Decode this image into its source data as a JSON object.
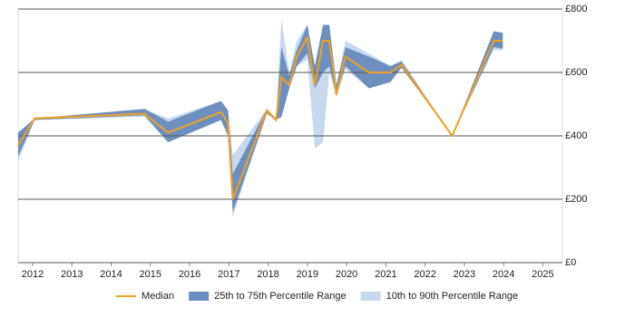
{
  "chart_data": {
    "type": "percentile-band",
    "x": [
      2011.63,
      2012.05,
      2014.85,
      2015.45,
      2016.8,
      2016.98,
      2017.1,
      2017.97,
      2018.2,
      2018.34,
      2018.54,
      2018.73,
      2019.0,
      2019.19,
      2019.4,
      2019.56,
      2019.74,
      2019.97,
      2020.57,
      2021.12,
      2021.4,
      2022.69,
      2023.75,
      2023.98
    ],
    "series": [
      {
        "name": "10th to 90th Percentile Range",
        "color": "#c6d9ee",
        "lower": [
          320,
          450,
          460,
          380,
          450,
          400,
          145,
          470,
          450,
          460,
          550,
          620,
          640,
          360,
          380,
          600,
          520,
          610,
          550,
          570,
          615,
          400,
          670,
          670
        ],
        "upper": [
          410,
          455,
          485,
          455,
          510,
          480,
          340,
          485,
          455,
          770,
          600,
          700,
          750,
          620,
          750,
          750,
          560,
          700,
          660,
          620,
          640,
          400,
          730,
          725
        ]
      },
      {
        "name": "25th to 75th Percentile Range",
        "color": "#6d8fc0",
        "lower": [
          335,
          450,
          465,
          380,
          450,
          400,
          160,
          470,
          450,
          460,
          550,
          620,
          660,
          550,
          600,
          620,
          530,
          620,
          550,
          570,
          615,
          400,
          680,
          675
        ],
        "upper": [
          410,
          455,
          485,
          445,
          510,
          480,
          280,
          485,
          455,
          680,
          590,
          670,
          750,
          620,
          750,
          750,
          560,
          680,
          650,
          620,
          635,
          400,
          730,
          725
        ]
      },
      {
        "name": "Median",
        "color": "#f0a020",
        "values": [
          370,
          455,
          470,
          410,
          475,
          440,
          200,
          480,
          450,
          585,
          560,
          650,
          710,
          560,
          700,
          700,
          530,
          650,
          600,
          600,
          625,
          400,
          700,
          700
        ]
      }
    ],
    "xlim": [
      2011.63,
      2025.5
    ],
    "xticks": [
      2012,
      2013,
      2014,
      2015,
      2016,
      2017,
      2018,
      2019,
      2020,
      2021,
      2022,
      2023,
      2024,
      2025
    ],
    "ylim": [
      0,
      800
    ],
    "yticks": [
      {
        "value": 0,
        "label": "£0"
      },
      {
        "value": 200,
        "label": "£200"
      },
      {
        "value": 400,
        "label": "£400"
      },
      {
        "value": 600,
        "label": "£600"
      },
      {
        "value": 800,
        "label": "£800"
      }
    ],
    "grid": true
  }
}
